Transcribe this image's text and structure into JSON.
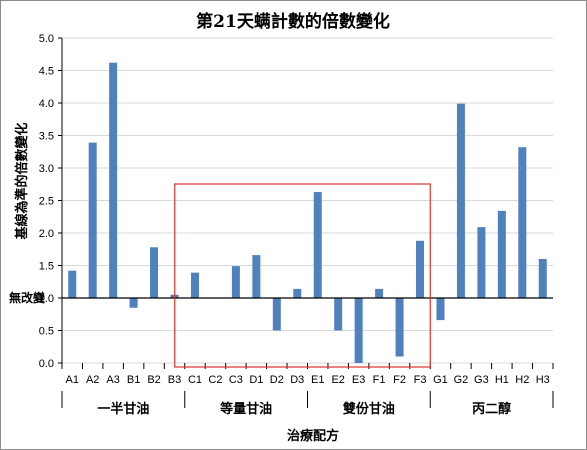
{
  "chart_data": {
    "type": "bar",
    "title": "第21天螨計數的倍數變化",
    "xlabel": "治療配方",
    "ylabel": "基線為準的倍數變化",
    "baseline_label": "無改變",
    "baseline_value": 1.0,
    "ylim": [
      0,
      5
    ],
    "yticks": [
      "0.0",
      "0.5",
      "1.0",
      "1.5",
      "2.0",
      "2.5",
      "3.0",
      "3.5",
      "4.0",
      "4.5",
      "5.0"
    ],
    "grid": true,
    "categories": [
      "A1",
      "A2",
      "A3",
      "B1",
      "B2",
      "B3",
      "C1",
      "C2",
      "C3",
      "D1",
      "D2",
      "D3",
      "E1",
      "E2",
      "E3",
      "F1",
      "F2",
      "F3",
      "G1",
      "G2",
      "G3",
      "H1",
      "H2",
      "H3"
    ],
    "values": [
      1.42,
      3.39,
      4.62,
      0.85,
      1.78,
      1.05,
      1.39,
      1.0,
      1.49,
      1.66,
      0.5,
      1.14,
      2.63,
      0.5,
      0.0,
      1.14,
      0.1,
      1.88,
      0.66,
      3.99,
      2.09,
      2.34,
      3.32,
      1.6
    ],
    "groups": [
      {
        "label": "一半甘油",
        "from": "A1",
        "to": "B3"
      },
      {
        "label": "等量甘油",
        "from": "C1",
        "to": "D3"
      },
      {
        "label": "雙份甘油",
        "from": "E1",
        "to": "F3"
      },
      {
        "label": "丙二醇",
        "from": "G1",
        "to": "H3"
      }
    ],
    "highlight": {
      "from": "C1",
      "to": "F3",
      "color": "#e0312b"
    },
    "bar_color": "#4f81bd"
  }
}
